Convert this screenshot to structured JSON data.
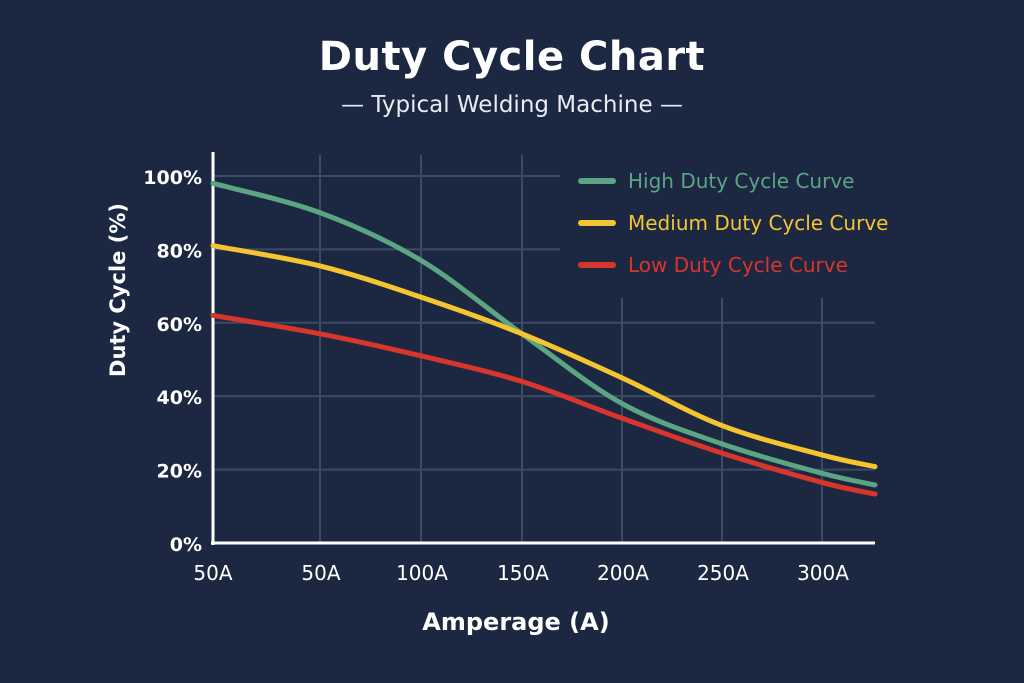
{
  "chart_data": {
    "type": "line",
    "title": "Duty Cycle Chart",
    "subtitle": "— Typical Welding Machine —",
    "xlabel": "Amperage (A)",
    "ylabel": "Duty Cycle (%)",
    "categories": [
      "50A",
      "50A",
      "100A",
      "150A",
      "200A",
      "250A",
      "300A"
    ],
    "yticks": [
      "0%",
      "20%",
      "40%",
      "60%",
      "80%",
      "100%"
    ],
    "ylim": [
      0,
      100
    ],
    "grid": true,
    "legend_position": "top-right",
    "series": [
      {
        "name": "High Duty Cycle Curve",
        "color": "#5ba583",
        "values": [
          98,
          90,
          77,
          57,
          38,
          27,
          19
        ]
      },
      {
        "name": "Medium Duty Cycle Curve",
        "color": "#f4c431",
        "values": [
          81,
          75.5,
          67,
          57,
          45,
          32,
          24
        ]
      },
      {
        "name": "Low Duty Cycle Curve",
        "color": "#d8352b",
        "values": [
          62,
          57,
          51,
          44,
          34,
          24.5,
          16.5
        ]
      }
    ]
  }
}
